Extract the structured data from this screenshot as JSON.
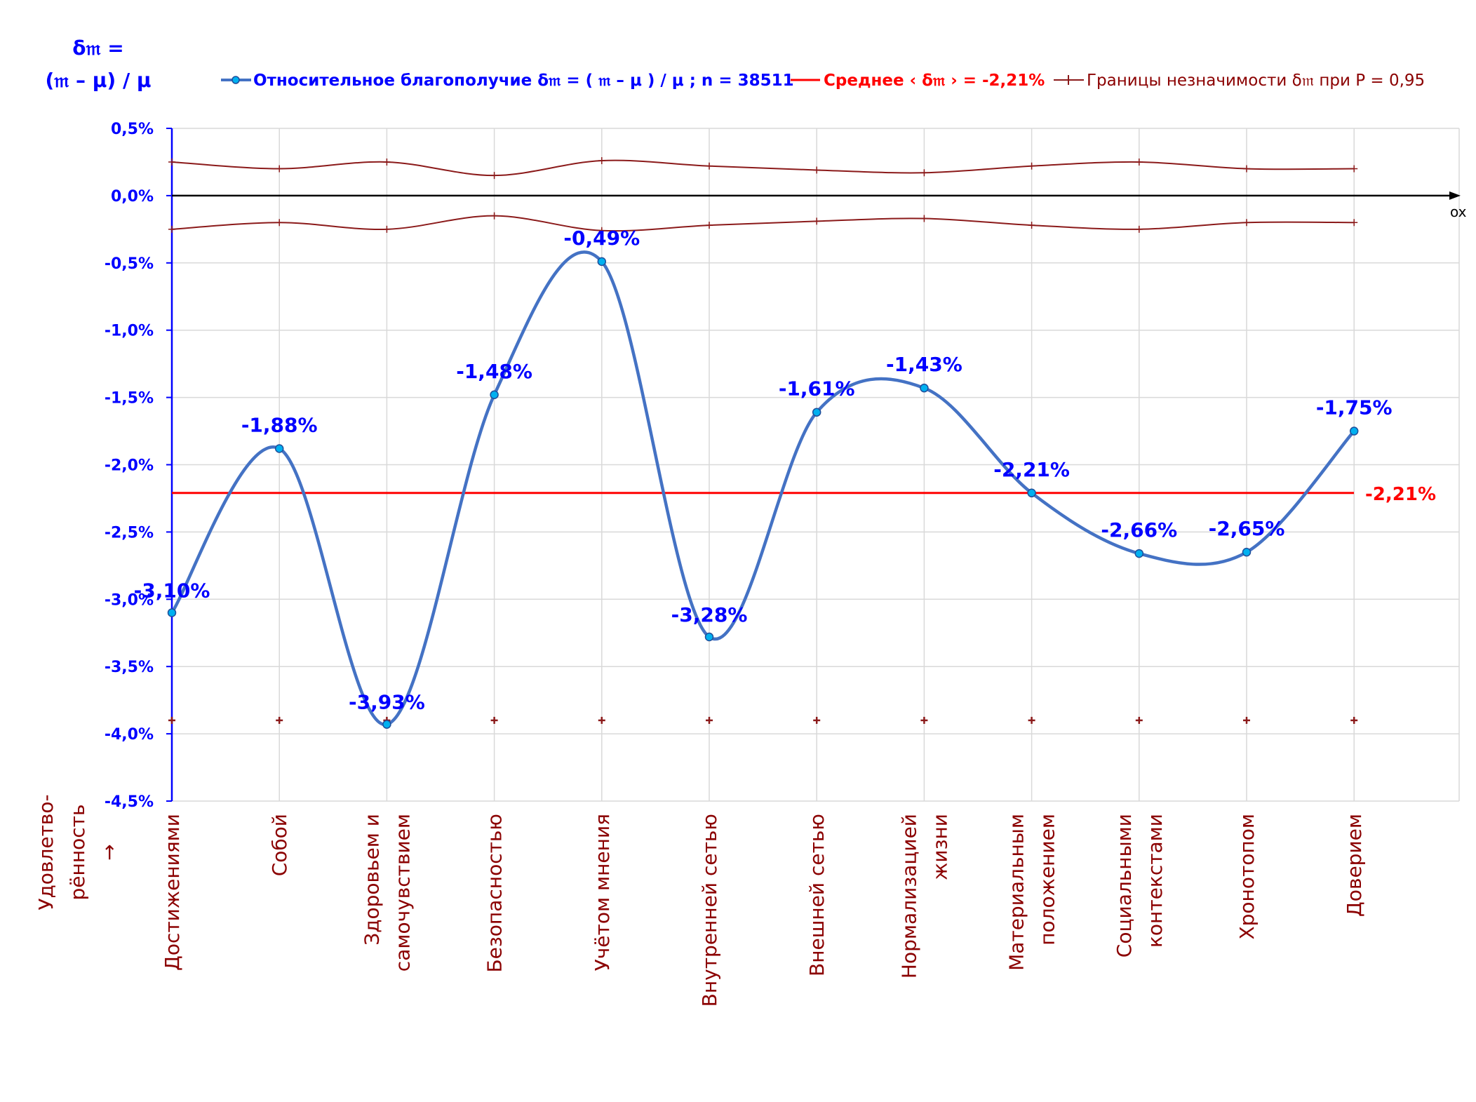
{
  "chart_data": {
    "type": "line",
    "y_title_line1": "δ𝔪 =",
    "y_title_line2": "(𝔪 – μ) / μ",
    "ox_label": "ox",
    "side_label_line1": "Удовлетво-",
    "side_label_line2": "рённость",
    "side_label_arrow": "→",
    "legend": {
      "series": "Относительное благополучие δ𝔪 = ( 𝔪 – μ ) / μ ; n = 38511",
      "mean": "Среднее ‹ δ𝔪 › = -2,21%",
      "bounds": "Границы незначимости δ𝔪 при P = 0,95"
    },
    "categories": [
      [
        "Достижениями"
      ],
      [
        "Собой"
      ],
      [
        "Здоровьем и",
        "самочувствием"
      ],
      [
        "Безопасностью"
      ],
      [
        "Учётом мнения"
      ],
      [
        "Внутренней сетью"
      ],
      [
        "Внешней сетью"
      ],
      [
        "Нормализацией",
        "жизни"
      ],
      [
        "Материальным",
        "положением"
      ],
      [
        "Социальными",
        "контекстами"
      ],
      [
        "Хронотопом"
      ],
      [
        "Доверием"
      ]
    ],
    "values": [
      -3.1,
      -1.88,
      -3.93,
      -1.48,
      -0.49,
      -3.28,
      -1.61,
      -1.43,
      -2.21,
      -2.66,
      -2.65,
      -1.75
    ],
    "value_labels": [
      "-3,10%",
      "-1,88%",
      "-3,93%",
      "-1,48%",
      "-0,49%",
      "-3,28%",
      "-1,61%",
      "-1,43%",
      "-2,21%",
      "-2,66%",
      "-2,65%",
      "-1,75%"
    ],
    "mean": -2.21,
    "mean_label": "-2,21%",
    "upper_bound": [
      0.25,
      0.2,
      0.25,
      0.15,
      0.26,
      0.22,
      0.19,
      0.17,
      0.22,
      0.25,
      0.2,
      0.2
    ],
    "lower_bound": [
      -0.25,
      -0.2,
      -0.25,
      -0.15,
      -0.26,
      -0.22,
      -0.19,
      -0.17,
      -0.22,
      -0.25,
      -0.2,
      -0.2
    ],
    "bottom_markers": -3.9,
    "y_ticks": [
      0.5,
      0.0,
      -0.5,
      -1.0,
      -1.5,
      -2.0,
      -2.5,
      -3.0,
      -3.5,
      -4.0,
      -4.5
    ],
    "y_tick_labels": [
      "0,5%",
      "0,0%",
      "-0,5%",
      "-1,0%",
      "-1,5%",
      "-2,0%",
      "-2,5%",
      "-3,0%",
      "-3,5%",
      "-4,0%",
      "-4,5%"
    ],
    "ylim": [
      -4.5,
      0.5
    ],
    "grid": true,
    "legend_position": "top",
    "colors": {
      "series": "#4472c4",
      "marker_fill": "#00b0f0",
      "mean": "#ff0000",
      "bounds": "#8b1a1a",
      "axis_text": "#0000ff",
      "category_text": "#8b0000",
      "grid": "#d9d9d9"
    }
  }
}
